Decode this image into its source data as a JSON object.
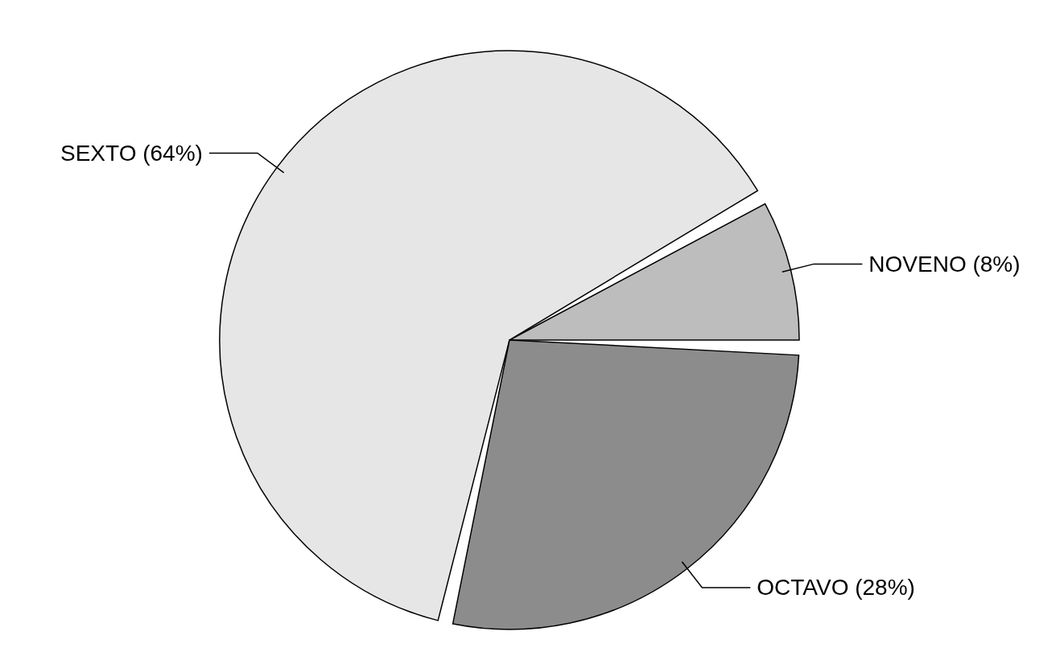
{
  "chart_data": {
    "type": "pie",
    "categories": [
      "NOVENO (8%)",
      "SEXTO (64%)",
      "OCTAVO (28%)"
    ],
    "values": [
      8,
      64,
      28
    ],
    "colors": [
      "#bdbdbd",
      "#e6e6e6",
      "#8c8c8c"
    ]
  }
}
